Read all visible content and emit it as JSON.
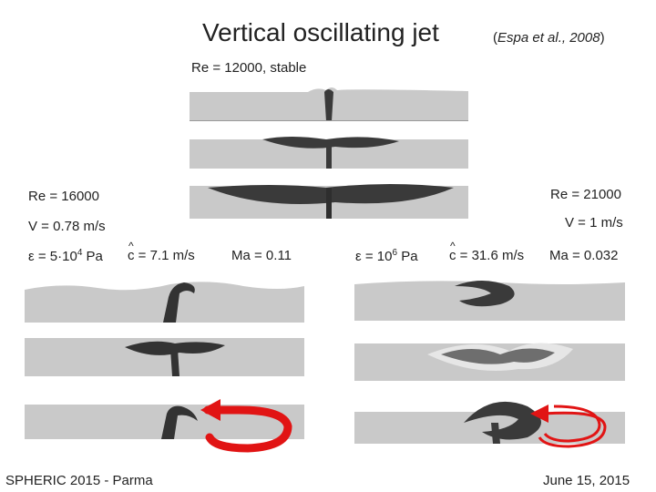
{
  "slide": {
    "title": "Vertical oscillating jet",
    "citation_open": "(",
    "citation_body": "Espa et al., 2008",
    "citation_close": ")"
  },
  "top_case": {
    "label": "Re = 12000, stable"
  },
  "left_case": {
    "reynolds": "Re = 16000",
    "velocity": "V = 0.78 m/s",
    "epsilon_prefix": "ε = 5·10",
    "epsilon_exp": "4",
    "epsilon_unit": " Pa",
    "c_hat_symbol": "c",
    "c_hat_value": " = 7.1 m/s",
    "mach": "Ma = 0.11"
  },
  "right_case": {
    "reynolds": "Re = 21000",
    "velocity": "V = 1 m/s",
    "epsilon_prefix": "ε = 10",
    "epsilon_exp": "6",
    "epsilon_unit": " Pa",
    "c_hat_symbol": "c",
    "c_hat_value": " = 31.6 m/s",
    "mach": "Ma = 0.032"
  },
  "footer": {
    "left": "SPHERIC 2015 - Parma",
    "right": "June 15, 2015"
  },
  "colors": {
    "fluid_light": "#c9c9c9",
    "fluid_dark": "#2e2e2e",
    "arrow_red": "#e11414"
  }
}
